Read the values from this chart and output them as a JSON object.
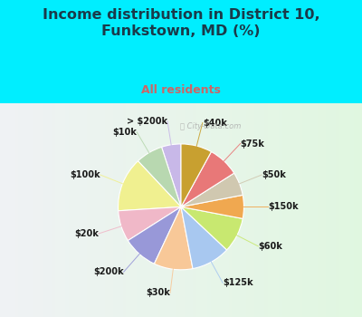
{
  "title": "Income distribution in District 10,\nFunkstown, MD (%)",
  "subtitle": "All residents",
  "title_color": "#1a3a4a",
  "subtitle_color": "#cc6666",
  "background_top": "#00eeff",
  "chart_bg_left": "#e8f5e8",
  "chart_bg_right": "#d0f0e8",
  "labels": [
    "> $200k",
    "$10k",
    "$100k",
    "$20k",
    "$200k",
    "$30k",
    "$125k",
    "$60k",
    "$150k",
    "$50k",
    "$75k",
    "$40k"
  ],
  "values": [
    5,
    7,
    14,
    8,
    9,
    10,
    10,
    9,
    6,
    6,
    8,
    8
  ],
  "colors": [
    "#c8b8e8",
    "#b8d8b0",
    "#f0f090",
    "#f0b8c8",
    "#9898d8",
    "#f8c898",
    "#a8c8f0",
    "#c8e870",
    "#f0a850",
    "#d0c8b0",
    "#e87878",
    "#c8a030"
  ],
  "startangle": 90,
  "figsize": [
    4.0,
    3.5
  ],
  "dpi": 100,
  "title_fontsize": 11.5,
  "subtitle_fontsize": 9,
  "label_fontsize": 7
}
